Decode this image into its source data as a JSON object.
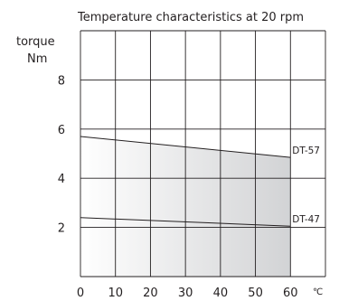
{
  "chart_data": {
    "type": "line",
    "title": "Temperature characteristics at 20 rpm",
    "ylabel_line1": "torque",
    "ylabel_line2": "Nm",
    "xunit": "℃",
    "xlim": [
      0,
      70
    ],
    "ylim": [
      0,
      10
    ],
    "grid": true,
    "x_ticks": [
      0,
      10,
      20,
      30,
      40,
      50,
      60
    ],
    "y_ticks": [
      2,
      4,
      6,
      8
    ],
    "series": [
      {
        "name": "DT-57",
        "x": [
          0,
          60
        ],
        "y": [
          5.7,
          4.85
        ]
      },
      {
        "name": "DT-47",
        "x": [
          0,
          60
        ],
        "y": [
          2.4,
          2.05
        ]
      }
    ],
    "fill_between": {
      "upper": "DT-57",
      "lower_value": 0,
      "x_range": [
        0,
        60
      ],
      "color_start": "#ffffff",
      "color_end": "#d2d3d5"
    },
    "colors": {
      "line": "#231f20",
      "grid": "#231f20",
      "fill_end": "#d2d3d5"
    }
  }
}
